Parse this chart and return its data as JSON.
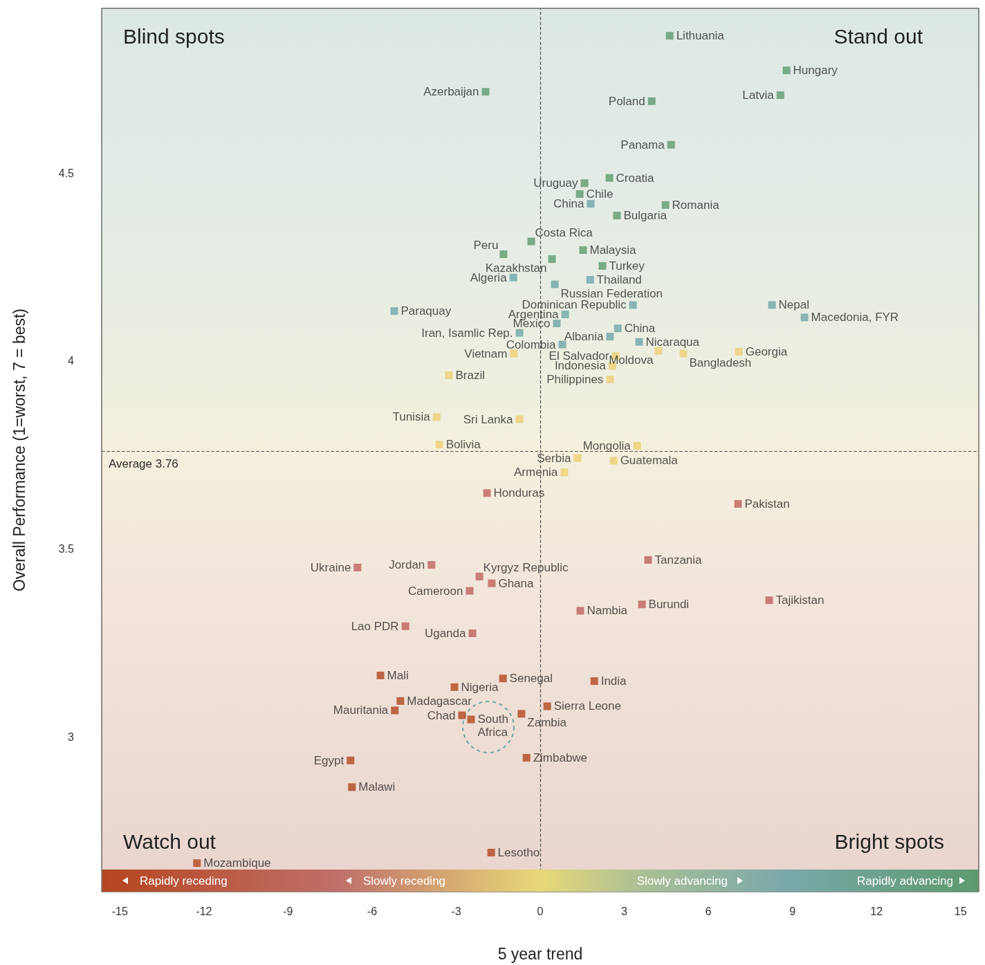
{
  "chart_data": {
    "type": "scatter",
    "marker": "square",
    "xlabel": "5 year trend",
    "ylabel": "Overall Performance (1=worst, 7 = best)",
    "xlim": [
      -15.65,
      15.65
    ],
    "xticks": [
      -15,
      -12,
      -9,
      -6,
      -3,
      0,
      3,
      6,
      9,
      12,
      15
    ],
    "ylim": [
      2.589,
      4.938
    ],
    "yticks": [
      3,
      3.5,
      4,
      4.5
    ],
    "ref_lines": [
      {
        "axis": "x",
        "value": 0,
        "line_style": "dashed"
      },
      {
        "axis": "y",
        "value": 3.76,
        "label": "Average 3.76",
        "line_style": "dashed"
      }
    ],
    "annotations": [
      "Blind spots",
      "Stand out",
      "Watch out",
      "Bright spots",
      "Rapidly receding",
      "Slowly receding",
      "Slowly advancing",
      "Rapidly advancing"
    ],
    "series": [
      {
        "color": "#5e9a6e",
        "x": [
          4.62,
          8.79,
          -1.95,
          8.57,
          3.98,
          4.67,
          2.47,
          1.58,
          1.41,
          4.47,
          2.74,
          -0.32,
          -1.31,
          1.53,
          0.42,
          2.22
        ],
        "values": [
          4.865,
          4.773,
          4.716,
          4.707,
          4.691,
          4.575,
          4.487,
          4.473,
          4.444,
          4.415,
          4.387,
          4.318,
          4.284,
          4.295,
          4.271,
          4.253
        ],
        "value_labels": [
          "Lithuania",
          "Hungary",
          "Azerbaijan",
          "Latvia",
          "Poland",
          "Panama",
          "Croatia",
          "Uruguay",
          "Chile",
          "Romania",
          "Bulgaria",
          "Costa Rica",
          "Peru",
          "Malaysia",
          "Kazakhstan",
          "Turkey"
        ]
      },
      {
        "color": "#6fa5a8",
        "x": [
          1.8,
          -0.96,
          1.78,
          0.52,
          -5.21,
          3.31,
          0.89,
          0.59,
          -0.74,
          2.77,
          2.49,
          3.53,
          0.79,
          8.27,
          9.43
        ],
        "values": [
          4.418,
          4.222,
          4.216,
          4.204,
          4.133,
          4.149,
          4.124,
          4.1,
          4.075,
          4.087,
          4.065,
          4.051,
          4.044,
          4.149,
          4.116
        ],
        "value_labels": [
          "China",
          "Algeria",
          "Thailand",
          "Russian Federation",
          "Paraquay",
          "Dominican Republic",
          "Argentina",
          "Mexico",
          "Iran, Isamlic Rep.",
          "China",
          "Albania",
          "Nicaraqua",
          "Colombia",
          "Nepal",
          "Macedonia, FYR"
        ]
      },
      {
        "color": "#ecd074",
        "x": [
          -0.94,
          2.69,
          4.22,
          5.11,
          7.09,
          2.57,
          -3.26,
          2.49,
          -3.7,
          -0.74,
          -3.6,
          3.46,
          1.33,
          2.62,
          0.86
        ],
        "values": [
          4.02,
          4.013,
          4.027,
          4.02,
          4.025,
          3.987,
          3.962,
          3.951,
          3.851,
          3.845,
          3.778,
          3.775,
          3.742,
          3.735,
          3.704
        ],
        "value_labels": [
          "Vietnam",
          "El Salvador",
          "Moldova",
          "Bangladesh",
          "Georgia",
          "Indonesia",
          "Brazil",
          "Philippines",
          "Tunisia",
          "Sri Lanka",
          "Bolivia",
          "Mongolia",
          "Serbia",
          "Guatemala",
          "Armenia"
        ]
      },
      {
        "color": "#bf615d",
        "x": [
          -1.9,
          7.06,
          3.85,
          -6.52,
          -3.88,
          -2.17,
          -1.73,
          -2.52,
          8.17,
          3.63,
          1.43,
          -4.81,
          -2.42
        ],
        "values": [
          3.649,
          3.62,
          3.471,
          3.451,
          3.458,
          3.427,
          3.409,
          3.389,
          3.364,
          3.353,
          3.336,
          3.295,
          3.276
        ],
        "value_labels": [
          "Honduras",
          "Pakistan",
          "Tanzania",
          "Ukraine",
          "Jordan",
          "Kyrgyz Republic",
          "Ghana",
          "Cameroon",
          "Tajikistan",
          "Burundi",
          "Nambia",
          "Lao PDR",
          "Uganda"
        ]
      },
      {
        "color": "#b0461f",
        "x": [
          -5.7,
          -1.33,
          1.93,
          -3.06,
          -4.99,
          0.25,
          -5.19,
          -2.79,
          -2.47,
          -0.67,
          -6.77,
          -0.49,
          -6.72,
          -1.75,
          -12.25
        ],
        "values": [
          3.164,
          3.156,
          3.149,
          3.133,
          3.096,
          3.082,
          3.071,
          3.058,
          3.047,
          3.062,
          2.938,
          2.945,
          2.867,
          2.693,
          2.665
        ],
        "value_labels": [
          "Mali",
          "Senegal",
          "India",
          "Nigeria",
          "Madagascar",
          "Sierra Leone",
          "Mauritania",
          "Chad",
          "South Africa",
          "Zambia",
          "Egypt",
          "Zimbabwe",
          "Malawi",
          "Lesotho",
          "Mozambique"
        ]
      }
    ]
  }
}
